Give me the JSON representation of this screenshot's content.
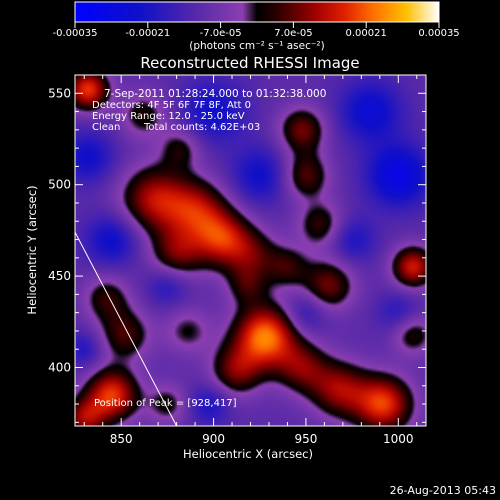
{
  "chart_data": {
    "type": "heatmap",
    "title": "Reconstructed RHESSI Image",
    "xlabel": "Heliocentric X (arcsec)",
    "ylabel": "Heliocentric Y (arcsec)",
    "xlim": [
      825,
      1015
    ],
    "ylim": [
      368,
      560
    ],
    "x_ticks": [
      "850",
      "900",
      "950",
      "1000"
    ],
    "y_ticks": [
      "400",
      "450",
      "500",
      "550"
    ],
    "colorbar": {
      "range": [
        -0.00035,
        0.00035
      ],
      "tick_values": [
        -0.00035,
        -0.00021,
        -7e-05,
        7e-05,
        0.00021,
        0.00035
      ],
      "tick_labels": [
        "-0.00035",
        "-0.00021",
        "-7.0e-05",
        "7.0e-05",
        "0.00021",
        "0.00035"
      ],
      "unit_label": "(photons cm⁻² s⁻¹ asec⁻²)"
    },
    "annotations": [
      "7-Sep-2011 01:28:24.000 to 01:32:38.000",
      "Detectors: 4F 5F 6F 7F 8F, Att 0",
      "Energy Range: 12.0 - 25.0 keV",
      "Clean",
      "Total counts: 4.62E+03"
    ],
    "peak_label": "Position of Peak = [928,417]",
    "peak": [
      928,
      417
    ],
    "footer": "26-Aug-2013 05:43",
    "limb_line": [
      [
        825,
        474
      ],
      [
        880,
        368
      ]
    ],
    "sources": [
      {
        "x": 832,
        "y": 552,
        "amp": 0.00029,
        "sigma": 8
      },
      {
        "x": 862,
        "y": 538,
        "amp": 0.00013,
        "sigma": 9
      },
      {
        "x": 882,
        "y": 520,
        "amp": 0.00012,
        "sigma": 8
      },
      {
        "x": 868,
        "y": 492,
        "amp": 0.00023,
        "sigma": 13
      },
      {
        "x": 891,
        "y": 486,
        "amp": 0.00021,
        "sigma": 12
      },
      {
        "x": 905,
        "y": 470,
        "amp": 0.00024,
        "sigma": 11
      },
      {
        "x": 880,
        "y": 462,
        "amp": 0.00017,
        "sigma": 10
      },
      {
        "x": 922,
        "y": 462,
        "amp": 0.00013,
        "sigma": 10
      },
      {
        "x": 918,
        "y": 445,
        "amp": 0.00012,
        "sigma": 8
      },
      {
        "x": 948,
        "y": 530,
        "amp": 0.00019,
        "sigma": 9
      },
      {
        "x": 950,
        "y": 505,
        "amp": 0.00017,
        "sigma": 9
      },
      {
        "x": 958,
        "y": 478,
        "amp": 0.00015,
        "sigma": 9
      },
      {
        "x": 962,
        "y": 445,
        "amp": 0.00019,
        "sigma": 10
      },
      {
        "x": 940,
        "y": 455,
        "amp": 0.00013,
        "sigma": 8
      },
      {
        "x": 842,
        "y": 438,
        "amp": 0.00014,
        "sigma": 9
      },
      {
        "x": 852,
        "y": 418,
        "amp": 0.00016,
        "sigma": 10
      },
      {
        "x": 886,
        "y": 420,
        "amp": 0.00011,
        "sigma": 9
      },
      {
        "x": 928,
        "y": 417,
        "amp": 0.00034,
        "sigma": 12
      },
      {
        "x": 912,
        "y": 398,
        "amp": 0.00018,
        "sigma": 10
      },
      {
        "x": 948,
        "y": 400,
        "amp": 0.00017,
        "sigma": 10
      },
      {
        "x": 968,
        "y": 388,
        "amp": 0.00021,
        "sigma": 11
      },
      {
        "x": 992,
        "y": 380,
        "amp": 0.00029,
        "sigma": 11
      },
      {
        "x": 1008,
        "y": 455,
        "amp": 0.00026,
        "sigma": 8
      },
      {
        "x": 1008,
        "y": 418,
        "amp": 0.00014,
        "sigma": 8
      },
      {
        "x": 845,
        "y": 385,
        "amp": 0.00029,
        "sigma": 10
      },
      {
        "x": 830,
        "y": 372,
        "amp": 0.0002,
        "sigma": 8
      },
      {
        "x": 875,
        "y": 380,
        "amp": 0.00012,
        "sigma": 8
      },
      {
        "x": 900,
        "y": 540,
        "amp": -0.00012,
        "sigma": 12
      },
      {
        "x": 925,
        "y": 505,
        "amp": -0.00012,
        "sigma": 11
      },
      {
        "x": 1000,
        "y": 505,
        "amp": -0.00018,
        "sigma": 12
      },
      {
        "x": 985,
        "y": 540,
        "amp": -0.00014,
        "sigma": 12
      },
      {
        "x": 975,
        "y": 470,
        "amp": -0.0001,
        "sigma": 9
      },
      {
        "x": 845,
        "y": 470,
        "amp": -0.00013,
        "sigma": 10
      },
      {
        "x": 875,
        "y": 445,
        "amp": -9e-05,
        "sigma": 8
      },
      {
        "x": 950,
        "y": 430,
        "amp": -0.0001,
        "sigma": 8
      },
      {
        "x": 1000,
        "y": 430,
        "amp": -8e-05,
        "sigma": 8
      },
      {
        "x": 898,
        "y": 380,
        "amp": -0.0001,
        "sigma": 8
      },
      {
        "x": 830,
        "y": 410,
        "amp": -9e-05,
        "sigma": 7
      },
      {
        "x": 832,
        "y": 515,
        "amp": -0.00012,
        "sigma": 10
      }
    ]
  }
}
